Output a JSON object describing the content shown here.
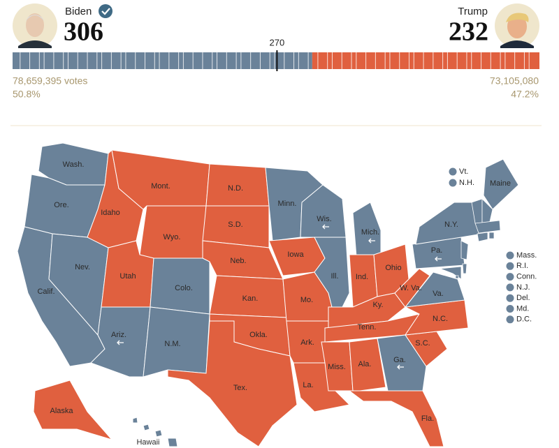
{
  "candidates": [
    {
      "name": "Biden",
      "electoral": 306,
      "votes": "78,659,395 votes",
      "share": "50.8%",
      "color": "#6a8299"
    },
    {
      "name": "Trump",
      "electoral": 232,
      "votes": "73,105,080",
      "share": "47.2%",
      "color": "#e0603f"
    }
  ],
  "threshold": 270,
  "states": [
    {
      "label": "Wash.",
      "winner": "Biden"
    },
    {
      "label": "Ore.",
      "winner": "Biden"
    },
    {
      "label": "Calif.",
      "winner": "Biden"
    },
    {
      "label": "Nev.",
      "winner": "Biden"
    },
    {
      "label": "Idaho",
      "winner": "Trump"
    },
    {
      "label": "Mont.",
      "winner": "Trump"
    },
    {
      "label": "Wyo.",
      "winner": "Trump"
    },
    {
      "label": "Utah",
      "winner": "Trump"
    },
    {
      "label": "Colo.",
      "winner": "Biden"
    },
    {
      "label": "Ariz.",
      "winner": "Biden"
    },
    {
      "label": "N.M.",
      "winner": "Biden"
    },
    {
      "label": "N.D.",
      "winner": "Trump"
    },
    {
      "label": "S.D.",
      "winner": "Trump"
    },
    {
      "label": "Neb.",
      "winner": "Trump"
    },
    {
      "label": "Kan.",
      "winner": "Trump"
    },
    {
      "label": "Okla.",
      "winner": "Trump"
    },
    {
      "label": "Tex.",
      "winner": "Trump"
    },
    {
      "label": "Minn.",
      "winner": "Biden"
    },
    {
      "label": "Iowa",
      "winner": "Trump"
    },
    {
      "label": "Mo.",
      "winner": "Trump"
    },
    {
      "label": "Ark.",
      "winner": "Trump"
    },
    {
      "label": "La.",
      "winner": "Trump"
    },
    {
      "label": "Wis.",
      "winner": "Biden"
    },
    {
      "label": "Ill.",
      "winner": "Biden"
    },
    {
      "label": "Mich.",
      "winner": "Biden"
    },
    {
      "label": "Ind.",
      "winner": "Trump"
    },
    {
      "label": "Ohio",
      "winner": "Trump"
    },
    {
      "label": "Ky.",
      "winner": "Trump"
    },
    {
      "label": "Tenn.",
      "winner": "Trump"
    },
    {
      "label": "Miss.",
      "winner": "Trump"
    },
    {
      "label": "Ala.",
      "winner": "Trump"
    },
    {
      "label": "Ga.",
      "winner": "Biden"
    },
    {
      "label": "Fla.",
      "winner": "Trump"
    },
    {
      "label": "S.C.",
      "winner": "Trump"
    },
    {
      "label": "N.C.",
      "winner": "Trump"
    },
    {
      "label": "Va.",
      "winner": "Biden"
    },
    {
      "label": "W. Va.",
      "winner": "Trump"
    },
    {
      "label": "Pa.",
      "winner": "Biden"
    },
    {
      "label": "N.Y.",
      "winner": "Biden"
    },
    {
      "label": "Maine",
      "winner": "Biden"
    },
    {
      "label": "Alaska",
      "winner": "Trump"
    },
    {
      "label": "Hawaii",
      "winner": "Biden"
    }
  ],
  "small_states": [
    {
      "label": "Vt.",
      "winner": "Biden"
    },
    {
      "label": "N.H.",
      "winner": "Biden"
    },
    {
      "label": "Mass.",
      "winner": "Biden"
    },
    {
      "label": "R.I.",
      "winner": "Biden"
    },
    {
      "label": "Conn.",
      "winner": "Biden"
    },
    {
      "label": "N.J.",
      "winner": "Biden"
    },
    {
      "label": "Del.",
      "winner": "Biden"
    },
    {
      "label": "Md.",
      "winner": "Biden"
    },
    {
      "label": "D.C.",
      "winner": "Biden"
    }
  ]
}
